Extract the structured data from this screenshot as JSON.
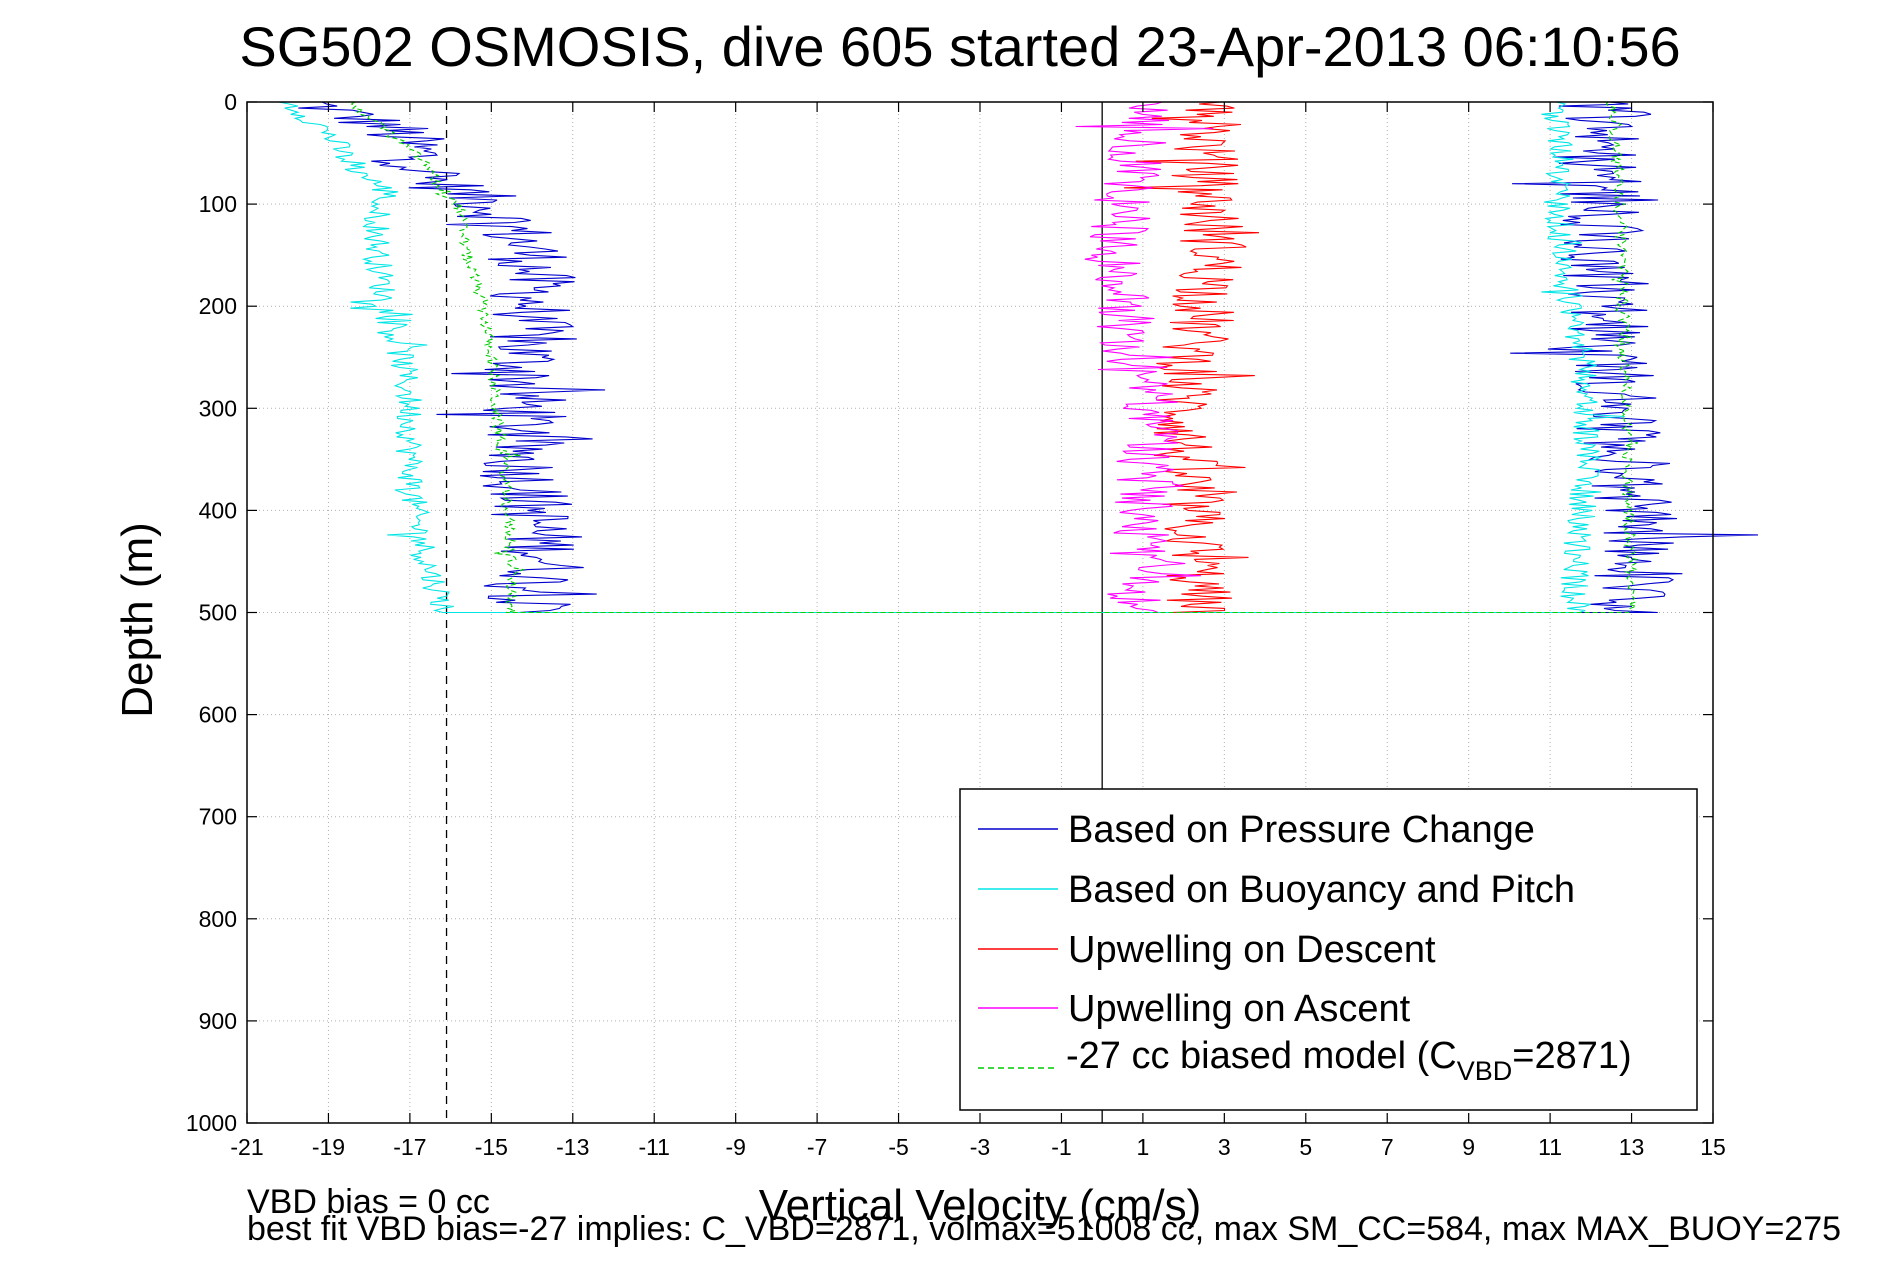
{
  "chart_data": {
    "type": "line",
    "title": "SG502 OSMOSIS, dive 605 started 23-Apr-2013 06:10:56",
    "xlabel": "Vertical Velocity (cm/s)",
    "ylabel": "Depth (m)",
    "xlim": [
      -21,
      15
    ],
    "ylim": [
      1000,
      0
    ],
    "y_reversed": true,
    "grid": true,
    "xticks": [
      "-21",
      "-19",
      "-17",
      "-15",
      "-13",
      "-11",
      "-9",
      "-7",
      "-5",
      "-3",
      "-1",
      "1",
      "3",
      "5",
      "7",
      "9",
      "11",
      "13",
      "15"
    ],
    "yticks": [
      "0",
      "100",
      "200",
      "300",
      "400",
      "500",
      "600",
      "700",
      "800",
      "900",
      "1000"
    ],
    "reference_lines": [
      {
        "style": "dashed",
        "x": -16.1
      },
      {
        "style": "solid",
        "x": 0
      }
    ],
    "legend": {
      "placement": "bottom-right",
      "entries": [
        {
          "label": "Based on Pressure Change",
          "color": "#0000cc"
        },
        {
          "label": "Based on Buoyancy and Pitch",
          "color": "#00e5e5"
        },
        {
          "label": "Upwelling on Descent",
          "color": "#ff0000"
        },
        {
          "label": "Upwelling on Ascent",
          "color": "#ff00ff"
        },
        {
          "label_main": "-27 cc biased model (C",
          "label_sub": "VBD",
          "label_tail": "=2871)",
          "color": "#00cc00",
          "dashed": true
        }
      ]
    },
    "series": [
      {
        "color": "#0000cc",
        "noise": 1.1,
        "descent": [
          [
            0,
            -19.5
          ],
          [
            25,
            -17.5
          ],
          [
            50,
            -16.8
          ],
          [
            75,
            -16.5
          ],
          [
            100,
            -15.0
          ],
          [
            150,
            -14.0
          ],
          [
            200,
            -14.0
          ],
          [
            250,
            -14.2
          ],
          [
            300,
            -14.2
          ],
          [
            350,
            -14.3
          ],
          [
            400,
            -14.0
          ],
          [
            450,
            -13.6
          ],
          [
            500,
            -14.2
          ]
        ],
        "ascent": [
          [
            500,
            13.0
          ],
          [
            450,
            13.2
          ],
          [
            400,
            13.1
          ],
          [
            350,
            12.9
          ],
          [
            300,
            12.8
          ],
          [
            250,
            12.6
          ],
          [
            200,
            12.5
          ],
          [
            150,
            12.3
          ],
          [
            100,
            12.2
          ],
          [
            50,
            12.2
          ],
          [
            20,
            12.3
          ],
          [
            0,
            12.0
          ]
        ]
      },
      {
        "color": "#00e5e5",
        "noise": 0.35,
        "descent": [
          [
            0,
            -20.0
          ],
          [
            30,
            -19.0
          ],
          [
            60,
            -18.5
          ],
          [
            90,
            -17.5
          ],
          [
            100,
            -17.8
          ],
          [
            150,
            -17.8
          ],
          [
            200,
            -17.6
          ],
          [
            250,
            -17.2
          ],
          [
            300,
            -17.0
          ],
          [
            350,
            -17.0
          ],
          [
            400,
            -16.9
          ],
          [
            450,
            -16.6
          ],
          [
            500,
            -16.1
          ]
        ],
        "ascent": [
          [
            500,
            11.6
          ],
          [
            450,
            11.6
          ],
          [
            400,
            11.8
          ],
          [
            350,
            11.9
          ],
          [
            300,
            11.9
          ],
          [
            250,
            11.8
          ],
          [
            200,
            11.5
          ],
          [
            150,
            11.3
          ],
          [
            100,
            11.2
          ],
          [
            50,
            11.3
          ],
          [
            20,
            11.2
          ],
          [
            0,
            11.0
          ]
        ]
      },
      {
        "color": "#ff0000",
        "noise": 0.85,
        "descent": [
          [
            0,
            2.8
          ],
          [
            50,
            2.5
          ],
          [
            100,
            2.6
          ],
          [
            150,
            2.8
          ],
          [
            200,
            2.5
          ],
          [
            250,
            2.2
          ],
          [
            300,
            2.0
          ],
          [
            350,
            2.0
          ],
          [
            400,
            2.2
          ],
          [
            450,
            2.3
          ],
          [
            500,
            2.4
          ]
        ]
      },
      {
        "color": "#ff00ff",
        "noise": 0.75,
        "ascent": [
          [
            500,
            0.7
          ],
          [
            450,
            0.9
          ],
          [
            400,
            1.0
          ],
          [
            350,
            1.1
          ],
          [
            300,
            1.2
          ],
          [
            250,
            0.8
          ],
          [
            200,
            0.5
          ],
          [
            150,
            0.4
          ],
          [
            100,
            0.5
          ],
          [
            50,
            0.9
          ],
          [
            0,
            1.2
          ]
        ]
      },
      {
        "color": "#00cc00",
        "dashed": true,
        "noise": 0.15,
        "descent": [
          [
            0,
            -18.5
          ],
          [
            30,
            -17.5
          ],
          [
            60,
            -16.6
          ],
          [
            90,
            -16.2
          ],
          [
            100,
            -15.8
          ],
          [
            150,
            -15.6
          ],
          [
            200,
            -15.2
          ],
          [
            250,
            -15.0
          ],
          [
            300,
            -14.9
          ],
          [
            350,
            -14.7
          ],
          [
            400,
            -14.6
          ],
          [
            450,
            -14.5
          ],
          [
            500,
            -14.5
          ]
        ],
        "ascent": [
          [
            500,
            13.0
          ],
          [
            450,
            13.0
          ],
          [
            400,
            12.9
          ],
          [
            350,
            12.9
          ],
          [
            300,
            12.9
          ],
          [
            250,
            12.8
          ],
          [
            200,
            12.8
          ],
          [
            150,
            12.8
          ],
          [
            100,
            12.7
          ],
          [
            50,
            12.6
          ],
          [
            20,
            12.6
          ],
          [
            0,
            12.5
          ]
        ]
      }
    ]
  },
  "notes": {
    "line1": "VBD bias = 0 cc",
    "line2": "best fit VBD bias=-27 implies: C_VBD=2871, volmax=51008 cc, max SM_CC=584, max MAX_BUOY=275"
  }
}
